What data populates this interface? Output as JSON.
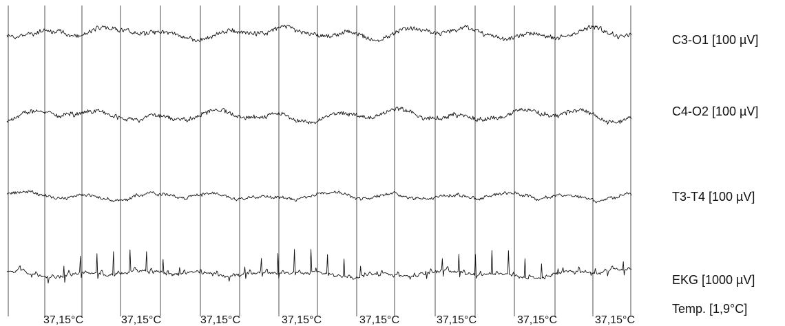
{
  "chart_data": {
    "type": "line",
    "title": "",
    "channels": [
      {
        "label": "C3-O1 [100 µV]",
        "seed": 11
      },
      {
        "label": "C4-O2 [100 µV]",
        "seed": 23
      },
      {
        "label": "T3-T4 [100 µV]",
        "seed": 37
      },
      {
        "label": "EKG [1000 µV]",
        "seed": 53
      }
    ],
    "temperature_channel": {
      "label": "Temp. [1,9°C]",
      "tick_labels": [
        "37,15°C",
        "37,15°C",
        "37,15°C",
        "37,15°C",
        "37,15°C",
        "37,15°C",
        "37,15°C",
        "37,15°C"
      ]
    },
    "ekg": {
      "beats": 38
    },
    "grid": true
  }
}
